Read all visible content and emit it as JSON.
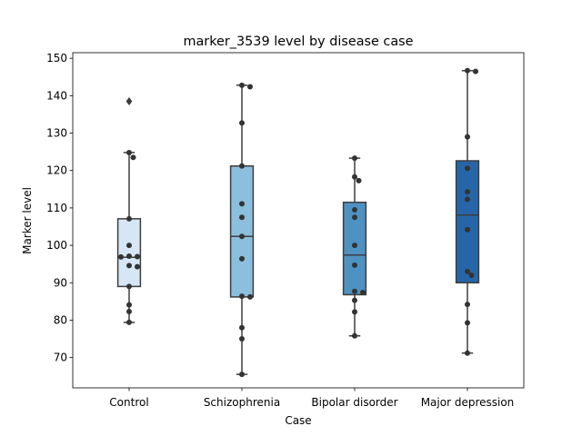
{
  "chart_data": {
    "type": "box",
    "title": "marker_3539 level by disease case",
    "xlabel": "Case",
    "ylabel": "Marker level",
    "ylim": [
      61.9,
      151.5
    ],
    "yticks": [
      70,
      80,
      90,
      100,
      110,
      120,
      130,
      140,
      150
    ],
    "grid": false,
    "categories": [
      "Control",
      "Schizophrenia",
      "Bipolar disorder",
      "Major depression"
    ],
    "colors": [
      "#d6e6f4",
      "#8cbfdd",
      "#4e92c3",
      "#2666a8"
    ],
    "boxes": [
      {
        "q1": 89.0,
        "median": 96.8,
        "q3": 107.1,
        "whisker_low": 79.4,
        "whisker_high": 124.8,
        "outliers": [
          138.5
        ],
        "points": [
          124.8,
          123.5,
          107.1,
          100.0,
          97.1,
          97.0,
          96.9,
          94.6,
          94.3,
          89.0,
          84.1,
          82.3,
          79.4
        ]
      },
      {
        "q1": 86.2,
        "median": 102.4,
        "q3": 121.2,
        "whisker_low": 65.5,
        "whisker_high": 142.8,
        "outliers": [],
        "points": [
          142.8,
          142.4,
          132.7,
          121.2,
          111.1,
          107.5,
          102.4,
          96.4,
          86.4,
          86.2,
          78.0,
          75.0,
          65.5
        ]
      },
      {
        "q1": 86.8,
        "median": 97.4,
        "q3": 111.5,
        "whisker_low": 75.8,
        "whisker_high": 123.3,
        "outliers": [],
        "points": [
          123.3,
          118.3,
          117.3,
          109.5,
          107.5,
          100.0,
          94.7,
          87.7,
          87.4,
          85.3,
          82.2,
          75.8
        ]
      },
      {
        "q1": 90.0,
        "median": 108.1,
        "q3": 122.6,
        "whisker_low": 71.2,
        "whisker_high": 146.7,
        "outliers": [],
        "points": [
          146.7,
          146.5,
          129.0,
          120.6,
          114.3,
          112.3,
          104.2,
          93.0,
          92.0,
          84.2,
          79.3,
          71.2
        ]
      }
    ]
  }
}
